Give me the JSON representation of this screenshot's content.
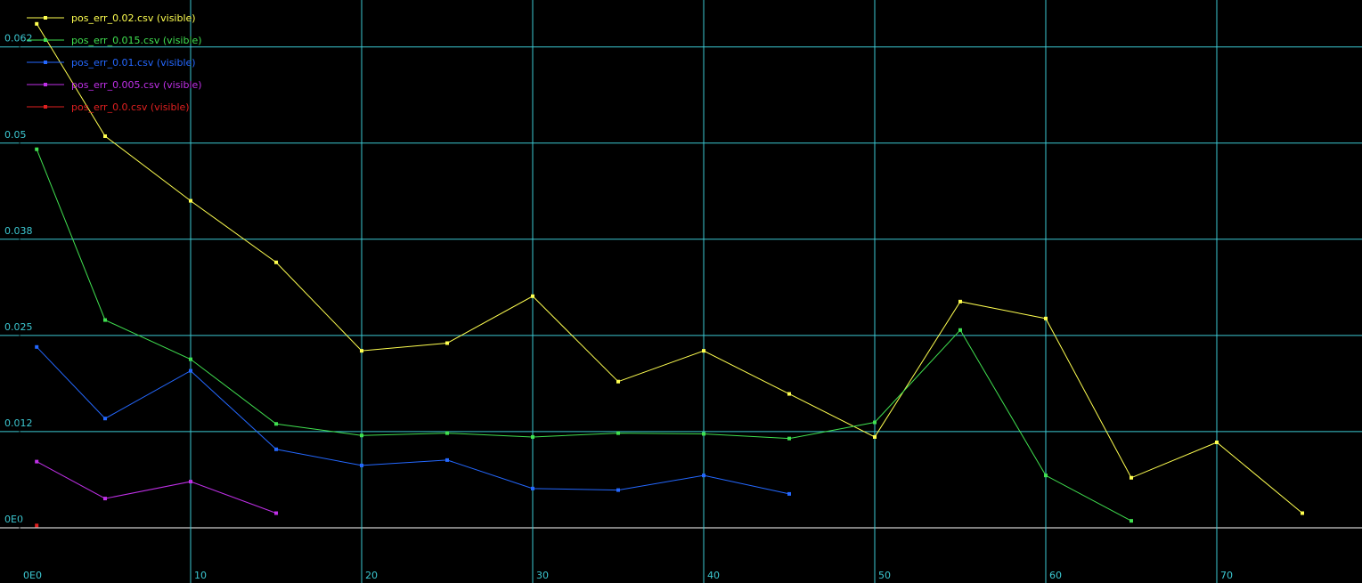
{
  "chart_data": {
    "type": "line",
    "grid": true,
    "legend": "top-left",
    "grid_color": "#3cc8d2",
    "xlim": [
      -1.146,
      78.49
    ],
    "ylim": [
      -0.00718,
      0.0686
    ],
    "xticks": [
      {
        "value": 0,
        "label": "0E0"
      },
      10,
      20,
      30,
      40,
      50,
      60,
      70
    ],
    "yticks": [
      {
        "value": 0,
        "label": "0E0"
      },
      {
        "value": 0.0125,
        "label": "0.012"
      },
      0.025,
      {
        "value": 0.0375,
        "label": "0.038"
      },
      0.05,
      {
        "value": 0.0625,
        "label": "0.062"
      }
    ],
    "series": [
      {
        "name": "pos_err_0.02.csv (visible)",
        "color": "#ffff50",
        "x": [
          1,
          5,
          10,
          15,
          20,
          25,
          30,
          35,
          40,
          45,
          50,
          55,
          60,
          65,
          70,
          75
        ],
        "values": [
          0.0655,
          0.0509,
          0.0425,
          0.0345,
          0.023,
          0.024,
          0.0301,
          0.019,
          0.023,
          0.0174,
          0.0118,
          0.0294,
          0.0272,
          0.0065,
          0.0111,
          0.0019
        ]
      },
      {
        "name": "pos_err_0.015.csv (visible)",
        "color": "#40e050",
        "x": [
          1,
          5,
          10,
          15,
          20,
          25,
          30,
          35,
          40,
          45,
          50,
          55,
          60,
          65
        ],
        "values": [
          0.0492,
          0.027,
          0.0219,
          0.0135,
          0.012,
          0.0123,
          0.0118,
          0.0123,
          0.0122,
          0.0116,
          0.0137,
          0.0257,
          0.0068,
          0.0009
        ]
      },
      {
        "name": "pos_err_0.01.csv (visible)",
        "color": "#2468ff",
        "x": [
          1,
          5,
          10,
          15,
          20,
          25,
          30,
          35,
          40,
          45
        ],
        "values": [
          0.0235,
          0.0142,
          0.0204,
          0.0102,
          0.0081,
          0.0088,
          0.0051,
          0.0049,
          0.0068,
          0.0044
        ]
      },
      {
        "name": "pos_err_0.005.csv (visible)",
        "color": "#c030e8",
        "x": [
          1,
          5,
          10,
          15
        ],
        "values": [
          0.0086,
          0.0038,
          0.006,
          0.0019
        ]
      },
      {
        "name": "pos_err_0.0.csv (visible)",
        "color": "#e02020",
        "x": [
          1
        ],
        "values": [
          0.0003
        ]
      }
    ]
  }
}
